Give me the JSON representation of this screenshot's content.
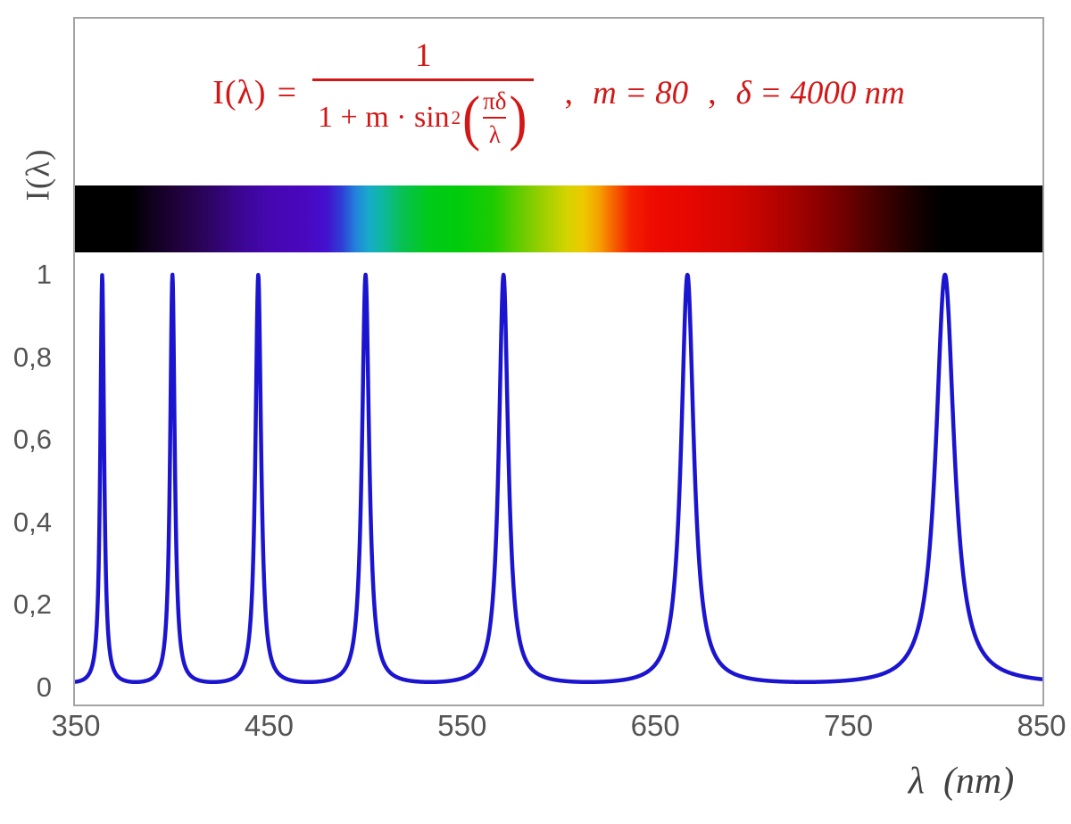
{
  "page": {
    "background": "#ffffff",
    "frame_border_color": "#a4a4a4"
  },
  "formula": {
    "color": "#d21717",
    "lhs": "I(λ)",
    "equals": "=",
    "numerator": "1",
    "den_text": "1 + m · sin",
    "den_sup": "2",
    "open_paren": "(",
    "close_paren": ")",
    "inner_num": "πδ",
    "inner_den": "λ",
    "comma1": ",",
    "param_m": "m = 80",
    "comma2": ",",
    "param_delta": "δ = 4000 nm"
  },
  "y_axis": {
    "title": "I(λ)",
    "color": "#545454",
    "ticks": [
      {
        "label": "1",
        "value": 1.0
      },
      {
        "label": "0,8",
        "value": 0.8
      },
      {
        "label": "0,6",
        "value": 0.6
      },
      {
        "label": "0,4",
        "value": 0.4
      },
      {
        "label": "0,2",
        "value": 0.2
      },
      {
        "label": "0",
        "value": 0.0
      }
    ]
  },
  "x_axis": {
    "title": "λ  (nm)",
    "color": "#545454",
    "ticks": [
      {
        "label": "350",
        "value": 350
      },
      {
        "label": "450",
        "value": 450
      },
      {
        "label": "550",
        "value": 550
      },
      {
        "label": "650",
        "value": 650
      },
      {
        "label": "750",
        "value": 750
      },
      {
        "label": "850",
        "value": 850
      }
    ]
  },
  "chart_data": {
    "type": "line",
    "annotation": "I(λ) = 1 / (1 + m · sin²(πδ/λ)) ,  m = 80 ,  δ = 4000 nm",
    "parameters": {
      "m": 80,
      "delta_nm": 4000
    },
    "x": {
      "label": "λ (nm)",
      "min": 350,
      "max": 850,
      "tick_step": 100
    },
    "y": {
      "label": "I(λ)",
      "min": 0,
      "max": 1,
      "tick_step": 0.2,
      "decimal_comma": true
    },
    "grid": false,
    "legend": false,
    "series": [
      {
        "name": "I(λ)",
        "color": "#1c15cf",
        "stroke_width": 4.5,
        "sample_step_nm": 0.2,
        "peaks_nm": [
          363.64,
          400.0,
          444.44,
          500.0,
          571.43,
          666.67,
          800.0
        ],
        "peak_value": 1.0,
        "baseline_value": 0.012
      }
    ],
    "spectrum_bar": {
      "description": "visible-light spectrum strip, 350–850 nm",
      "stops": [
        {
          "nm": 350,
          "color": "#000000"
        },
        {
          "nm": 379,
          "color": "#000000"
        },
        {
          "nm": 390,
          "color": "#10011f"
        },
        {
          "nm": 402,
          "color": "#1f0138"
        },
        {
          "nm": 418,
          "color": "#2c045e"
        },
        {
          "nm": 435,
          "color": "#3b0691"
        },
        {
          "nm": 450,
          "color": "#4507b0"
        },
        {
          "nm": 468,
          "color": "#4a07bd"
        },
        {
          "nm": 480,
          "color": "#4310cf"
        },
        {
          "nm": 488,
          "color": "#2f3fd5"
        },
        {
          "nm": 495,
          "color": "#2382dc"
        },
        {
          "nm": 502,
          "color": "#17abc9"
        },
        {
          "nm": 510,
          "color": "#0db998"
        },
        {
          "nm": 520,
          "color": "#07c14d"
        },
        {
          "nm": 533,
          "color": "#01ca19"
        },
        {
          "nm": 548,
          "color": "#00cc0c"
        },
        {
          "nm": 566,
          "color": "#1ccb00"
        },
        {
          "nm": 582,
          "color": "#6ecc00"
        },
        {
          "nm": 595,
          "color": "#abd000"
        },
        {
          "nm": 605,
          "color": "#d6d400"
        },
        {
          "nm": 613,
          "color": "#eec800"
        },
        {
          "nm": 621,
          "color": "#f69f00"
        },
        {
          "nm": 629,
          "color": "#f75c00"
        },
        {
          "nm": 637,
          "color": "#f32100"
        },
        {
          "nm": 648,
          "color": "#ee0b00"
        },
        {
          "nm": 668,
          "color": "#e60700"
        },
        {
          "nm": 695,
          "color": "#d00500"
        },
        {
          "nm": 718,
          "color": "#ab0200"
        },
        {
          "nm": 742,
          "color": "#7d0000"
        },
        {
          "nm": 762,
          "color": "#4c0000"
        },
        {
          "nm": 778,
          "color": "#260000"
        },
        {
          "nm": 790,
          "color": "#0b0000"
        },
        {
          "nm": 800,
          "color": "#000000"
        },
        {
          "nm": 850,
          "color": "#000000"
        }
      ]
    }
  }
}
